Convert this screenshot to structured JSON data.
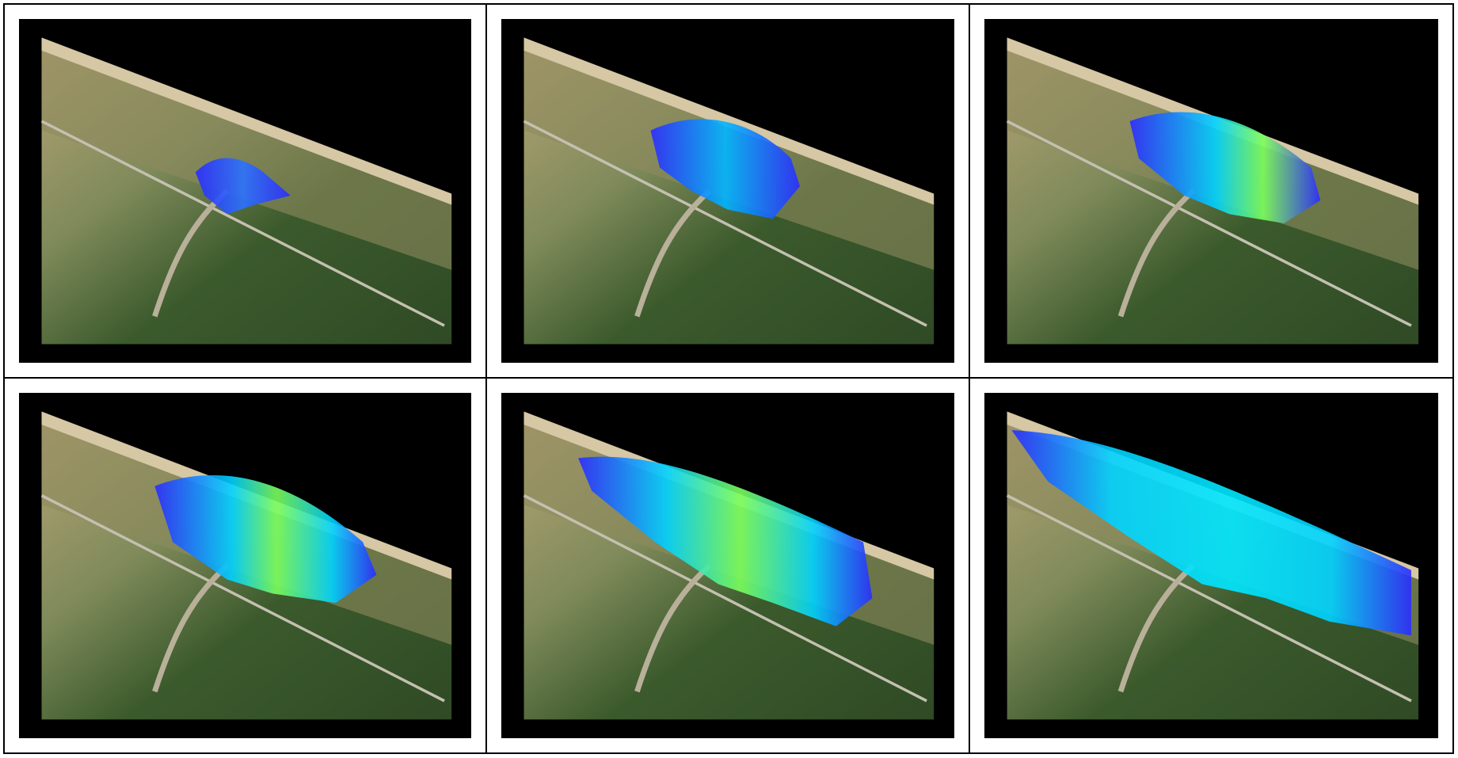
{
  "figure": {
    "panels": [
      {
        "extent": "small"
      },
      {
        "extent": "medium"
      },
      {
        "extent": "medium-large"
      },
      {
        "extent": "large"
      },
      {
        "extent": "very-large"
      },
      {
        "extent": "maximum"
      }
    ],
    "colors": {
      "background": "#000000",
      "terrain_forest": "#3b5a2c",
      "terrain_dunes": "#b8a577",
      "beach": "#d6c7a5",
      "flood_deep": "#2a2cff",
      "flood_mid": "#00d3ff",
      "flood_high": "#7cff5a"
    }
  }
}
